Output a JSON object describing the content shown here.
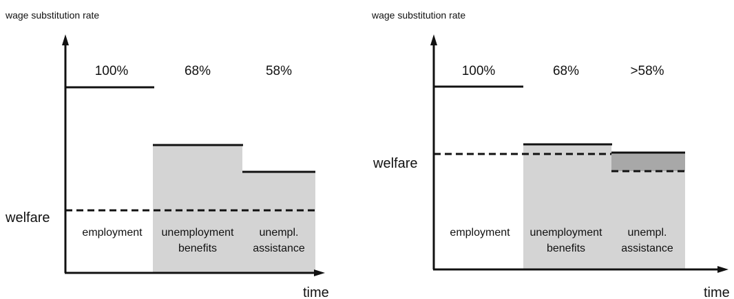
{
  "panels": [
    {
      "y_axis_label": "wage substitution rate",
      "x_axis_label": "time",
      "welfare_label": "welfare",
      "rates": [
        "100%",
        "68%",
        "58%"
      ],
      "phases": [
        [
          "employment"
        ],
        [
          "unemployment",
          "benefits"
        ],
        [
          "unempl.",
          "assistance"
        ]
      ]
    },
    {
      "y_axis_label": "wage substitution rate",
      "x_axis_label": "time",
      "welfare_label": "welfare",
      "rates": [
        "100%",
        "68%",
        ">58%"
      ],
      "phases": [
        [
          "employment"
        ],
        [
          "unemployment",
          "benefits"
        ],
        [
          "unempl.",
          "assistance"
        ]
      ]
    }
  ]
}
